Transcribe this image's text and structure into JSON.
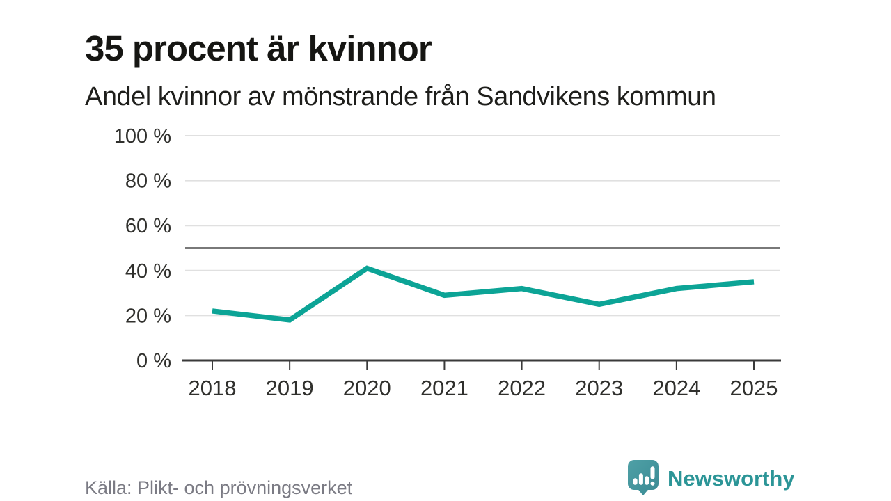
{
  "page": {
    "title": "35 procent är kvinnor",
    "subtitle": "Andel kvinnor av mönstrande från Sandvikens kommun"
  },
  "footer": {
    "source": "Källa: Plikt- och prövningsverket",
    "brand": "Newsworthy"
  },
  "colors": {
    "line": "#0ca496",
    "gridline": "#e0e0e0",
    "reference_line": "#4d4d4d",
    "axis": "#3a3a3a",
    "tick_label": "#30302d",
    "title_text": "#161613",
    "source_text": "#7b7b84",
    "brand_teal": "#2c9597",
    "logo_fill_top": "#4fa0a6",
    "logo_fill_bottom": "#3a8b94"
  },
  "chart_data": {
    "type": "line",
    "title": "35 procent är kvinnor",
    "subtitle": "Andel kvinnor av mönstrande från Sandvikens kommun",
    "x": [
      "2018",
      "2019",
      "2020",
      "2021",
      "2022",
      "2023",
      "2024",
      "2025"
    ],
    "series": [
      {
        "name": "Andel kvinnor av mönstrande",
        "values": [
          22,
          18,
          41,
          29,
          32,
          25,
          32,
          35
        ]
      }
    ],
    "unit": "%",
    "ylim": [
      0,
      100
    ],
    "yticks": [
      0,
      20,
      40,
      60,
      80,
      100
    ],
    "ytick_labels": [
      "0 %",
      "20 %",
      "40 %",
      "60 %",
      "80 %",
      "100 %"
    ],
    "reference_line": 50,
    "grid": "horizontal",
    "legend": "none",
    "line_color": "#0ca496"
  }
}
